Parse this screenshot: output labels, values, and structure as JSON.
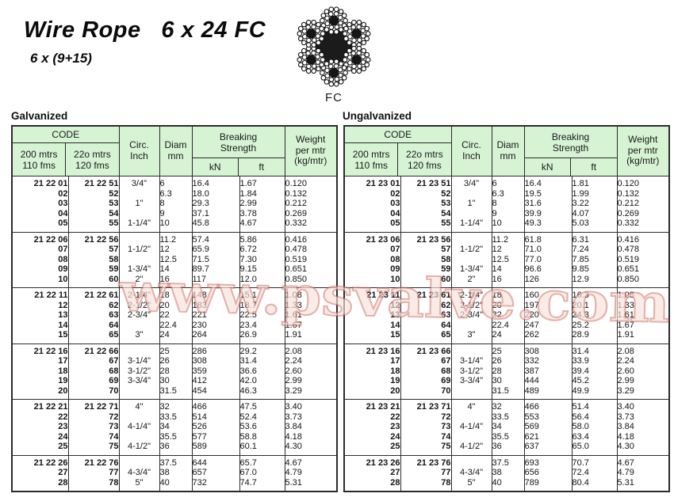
{
  "title": "Wire Rope   6 x 24 FC",
  "subtitle": "6 x (9+15)",
  "rope": {
    "label": "FC"
  },
  "watermark": {
    "text": "www.psvalve.com",
    "fill": "#f8e2dc",
    "stroke": "#c2584b"
  },
  "colors": {
    "header_bg": "#d6f3d4",
    "border": "#2b2b2b",
    "page_bg": "#ffffff"
  },
  "table_header": {
    "code": "CODE",
    "col1": [
      "200 mtrs",
      "110 fms"
    ],
    "col2": [
      "22o mtrs",
      "120 fms"
    ],
    "circ": [
      "Circ.",
      "Inch"
    ],
    "diam": [
      "Diam",
      "mm"
    ],
    "breaking": [
      "Breaking",
      "Strength"
    ],
    "kn": "kN",
    "ft": "ft",
    "weight": [
      "Weight",
      "per mtr",
      "(kg/mtr)"
    ]
  },
  "tables": [
    {
      "title": "Galvanized",
      "blocks": [
        [
          [
            "21 22 01",
            "21 22 51",
            "3/4\"",
            "6",
            "16.4",
            "1.67",
            "0.120"
          ],
          [
            "02",
            "52",
            "",
            "6.3",
            "18.0",
            "1.84",
            "0.132"
          ],
          [
            "03",
            "53",
            "1\"",
            "8",
            "29.3",
            "2.99",
            "0.212"
          ],
          [
            "04",
            "54",
            "",
            "9",
            "37.1",
            "3.78",
            "0.269"
          ],
          [
            "05",
            "55",
            "1-1/4\"",
            "10",
            "45.8",
            "4.67",
            "0.332"
          ]
        ],
        [
          [
            "21 22 06",
            "21 22 56",
            "",
            "11.2",
            "57.4",
            "5.86",
            "0.416"
          ],
          [
            "07",
            "57",
            "1-1/2\"",
            "12",
            "65.9",
            "6.72",
            "0.478"
          ],
          [
            "08",
            "58",
            "",
            "12.5",
            "71.5",
            "7.30",
            "0.519"
          ],
          [
            "09",
            "59",
            "1-3/4\"",
            "14",
            "89.7",
            "9.15",
            "0.651"
          ],
          [
            "10",
            "60",
            "2\"",
            "16",
            "117",
            "12.0",
            "0.850"
          ]
        ],
        [
          [
            "21 22 11",
            "21 22 61",
            "2-1/4\"",
            "18",
            "148",
            "15.1",
            "1.08"
          ],
          [
            "12",
            "62",
            "2-1/2\"",
            "20",
            "183",
            "18.7",
            "1.33"
          ],
          [
            "13",
            "63",
            "2-3/4\"",
            "22",
            "221",
            "22.5",
            "1.61"
          ],
          [
            "14",
            "64",
            "",
            "22.4",
            "230",
            "23.4",
            "1.67"
          ],
          [
            "15",
            "65",
            "3\"",
            "24",
            "264",
            "26.9",
            "1.91"
          ]
        ],
        [
          [
            "21 22 16",
            "21 22 66",
            "",
            "25",
            "286",
            "29.2",
            "2.08"
          ],
          [
            "17",
            "67",
            "3-1/4\"",
            "26",
            "308",
            "31.4",
            "2.24"
          ],
          [
            "18",
            "68",
            "3-1/2\"",
            "28",
            "359",
            "36.6",
            "2.60"
          ],
          [
            "19",
            "69",
            "3-3/4\"",
            "30",
            "412",
            "42.0",
            "2.99"
          ],
          [
            "20",
            "70",
            "",
            "31.5",
            "454",
            "46.3",
            "3.29"
          ]
        ],
        [
          [
            "21 22 21",
            "21 22 71",
            "4\"",
            "32",
            "466",
            "47.5",
            "3.40"
          ],
          [
            "22",
            "72",
            "",
            "33.5",
            "514",
            "52.4",
            "3.73"
          ],
          [
            "23",
            "73",
            "4-1/4\"",
            "34",
            "526",
            "53.6",
            "3.84"
          ],
          [
            "24",
            "74",
            "",
            "35.5",
            "577",
            "58.8",
            "4.18"
          ],
          [
            "25",
            "75",
            "4-1/2\"",
            "36",
            "589",
            "60.1",
            "4.30"
          ]
        ],
        [
          [
            "21 22 26",
            "21 22 76",
            "",
            "37.5",
            "644",
            "65.7",
            "4.67"
          ],
          [
            "27",
            "77",
            "4-3/4\"",
            "38",
            "657",
            "67.0",
            "4.79"
          ],
          [
            "28",
            "78",
            "5\"",
            "40",
            "732",
            "74.7",
            "5.31"
          ]
        ]
      ]
    },
    {
      "title": "Ungalvanized",
      "blocks": [
        [
          [
            "21 23 01",
            "21 23 51",
            "3/4\"",
            "6",
            "16.4",
            "1.81",
            "0.120"
          ],
          [
            "02",
            "52",
            "",
            "6.3",
            "19.5",
            "1.99",
            "0.132"
          ],
          [
            "03",
            "53",
            "1\"",
            "8",
            "31.6",
            "3.22",
            "0.212"
          ],
          [
            "04",
            "54",
            "",
            "9",
            "39.9",
            "4.07",
            "0.269"
          ],
          [
            "05",
            "55",
            "1-1/4\"",
            "10",
            "49.3",
            "5.03",
            "0.332"
          ]
        ],
        [
          [
            "21 23 06",
            "21 23 56",
            "",
            "11.2",
            "61.8",
            "6.31",
            "0.416"
          ],
          [
            "07",
            "57",
            "1-1/2\"",
            "12",
            "71.0",
            "7.24",
            "0.478"
          ],
          [
            "08",
            "58",
            "",
            "12.5",
            "77.0",
            "7.85",
            "0.519"
          ],
          [
            "09",
            "59",
            "1-3/4\"",
            "14",
            "96.6",
            "9.85",
            "0.651"
          ],
          [
            "10",
            "60",
            "2\"",
            "16",
            "126",
            "12.9",
            "0.850"
          ]
        ],
        [
          [
            "21 23 11",
            "21 23 61",
            "2-1/4\"",
            "18",
            "160",
            "16.3",
            "1.08"
          ],
          [
            "12",
            "62",
            "2-1/2\"",
            "20",
            "197",
            "20.1",
            "1.33"
          ],
          [
            "13",
            "63",
            "2-3/4\"",
            "22",
            "220",
            "24.3",
            "1.61"
          ],
          [
            "14",
            "64",
            "",
            "22.4",
            "247",
            "25.2",
            "1.67"
          ],
          [
            "15",
            "65",
            "3\"",
            "24",
            "262",
            "28.9",
            "1.91"
          ]
        ],
        [
          [
            "21 23 16",
            "21 23 66",
            "",
            "25",
            "308",
            "31.4",
            "2.08"
          ],
          [
            "17",
            "67",
            "3-1/4\"",
            "26",
            "332",
            "33.9",
            "2.24"
          ],
          [
            "18",
            "68",
            "3-1/2\"",
            "28",
            "387",
            "39.4",
            "2.60"
          ],
          [
            "19",
            "69",
            "3-3/4\"",
            "30",
            "444",
            "45.2",
            "2.99"
          ],
          [
            "20",
            "70",
            "",
            "31.5",
            "489",
            "49.9",
            "3.29"
          ]
        ],
        [
          [
            "21 23 21",
            "21 23 71",
            "4\"",
            "32",
            "466",
            "51.4",
            "3.40"
          ],
          [
            "22",
            "72",
            "",
            "33.5",
            "553",
            "56.4",
            "3.73"
          ],
          [
            "23",
            "73",
            "4-1/4\"",
            "34",
            "569",
            "58.0",
            "3.84"
          ],
          [
            "24",
            "74",
            "",
            "35.5",
            "621",
            "63.4",
            "4.18"
          ],
          [
            "25",
            "75",
            "4-1/2\"",
            "36",
            "637",
            "65.0",
            "4.30"
          ]
        ],
        [
          [
            "21 23 26",
            "21 23 76",
            "",
            "37.5",
            "693",
            "70.7",
            "4.67"
          ],
          [
            "27",
            "77",
            "4-3/4\"",
            "38",
            "656",
            "72.4",
            "4.79"
          ],
          [
            "28",
            "78",
            "5\"",
            "40",
            "789",
            "80.4",
            "5.31"
          ]
        ]
      ]
    }
  ]
}
